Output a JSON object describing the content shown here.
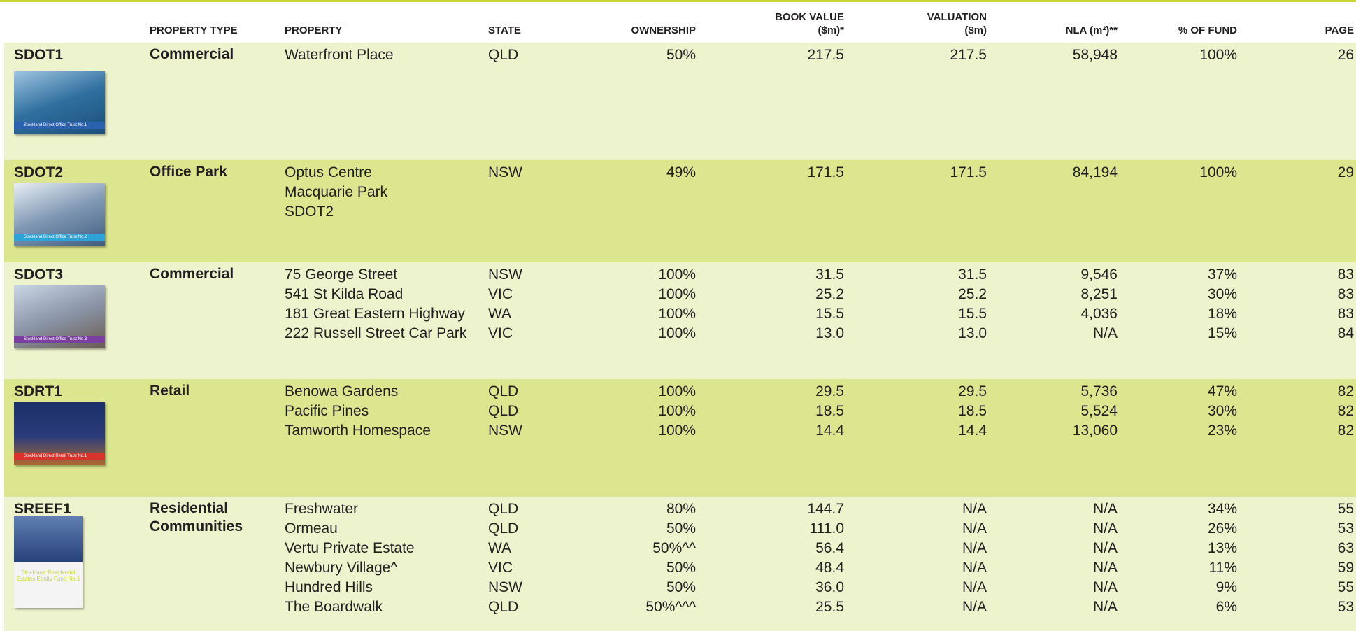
{
  "header": {
    "columns": [
      "PROPERTY TYPE",
      "PROPERTY",
      "STATE",
      "OWNERSHIP",
      "BOOK VALUE\n($m)*",
      "VALUATION\n($m)",
      "NLA (m²)**",
      "% OF FUND",
      "PAGE"
    ]
  },
  "groups": [
    {
      "code": "SDOT1",
      "type": "Commercial",
      "thumbnail_caption": "Stockland Direct Office Trust No.1",
      "rows": [
        [
          "Waterfront Place",
          "QLD",
          "50%",
          "217.5",
          "217.5",
          "58,948",
          "100%",
          "26"
        ]
      ]
    },
    {
      "code": "SDOT2",
      "type": "Office Park",
      "thumbnail_caption": "Stockland Direct Office Trust No.2",
      "rows": [
        [
          "Optus Centre",
          "NSW",
          "49%",
          "171.5",
          "171.5",
          "84,194",
          "100%",
          "29"
        ],
        [
          "Macquarie Park"
        ],
        [
          "SDOT2"
        ]
      ]
    },
    {
      "code": "SDOT3",
      "type": "Commercial",
      "thumbnail_caption": "Stockland Direct Office Trust No.3",
      "rows": [
        [
          "75 George Street",
          "NSW",
          "100%",
          "31.5",
          "31.5",
          "9,546",
          "37%",
          "83"
        ],
        [
          "541 St Kilda Road",
          "VIC",
          "100%",
          "25.2",
          "25.2",
          "8,251",
          "30%",
          "83"
        ],
        [
          "181 Great Eastern Highway",
          "WA",
          "100%",
          "15.5",
          "15.5",
          "4,036",
          "18%",
          "83"
        ],
        [
          "222 Russell Street Car Park",
          "VIC",
          "100%",
          "13.0",
          "13.0",
          "N/A",
          "15%",
          "84"
        ]
      ]
    },
    {
      "code": "SDRT1",
      "type": "Retail",
      "thumbnail_caption": "Stockland Direct Retail Trust No.1",
      "rows": [
        [
          "Benowa Gardens",
          "QLD",
          "100%",
          "29.5",
          "29.5",
          "5,736",
          "47%",
          "82"
        ],
        [
          "Pacific Pines",
          "QLD",
          "100%",
          "18.5",
          "18.5",
          "5,524",
          "30%",
          "82"
        ],
        [
          "Tamworth Homespace",
          "NSW",
          "100%",
          "14.4",
          "14.4",
          "13,060",
          "23%",
          "82"
        ]
      ]
    },
    {
      "code": "SREEF1",
      "type": "Residential Communities",
      "thumbnail_caption": "Stockland Residential Estates Equity Fund No.1",
      "rows": [
        [
          "Freshwater",
          "QLD",
          "80%",
          "144.7",
          "N/A",
          "N/A",
          "34%",
          "55"
        ],
        [
          "Ormeau",
          "QLD",
          "50%",
          "111.0",
          "N/A",
          "N/A",
          "26%",
          "53"
        ],
        [
          "Vertu Private Estate",
          "WA",
          "50%^^",
          "56.4",
          "N/A",
          "N/A",
          "13%",
          "63"
        ],
        [
          "Newbury Village^",
          "VIC",
          "50%",
          "48.4",
          "N/A",
          "N/A",
          "11%",
          "59"
        ],
        [
          "Hundred Hills",
          "NSW",
          "50%",
          "36.0",
          "N/A",
          "N/A",
          "9%",
          "55"
        ],
        [
          "The Boardwalk",
          "QLD",
          "50%^^^",
          "25.5",
          "N/A",
          "N/A",
          "6%",
          "53"
        ]
      ]
    }
  ]
}
